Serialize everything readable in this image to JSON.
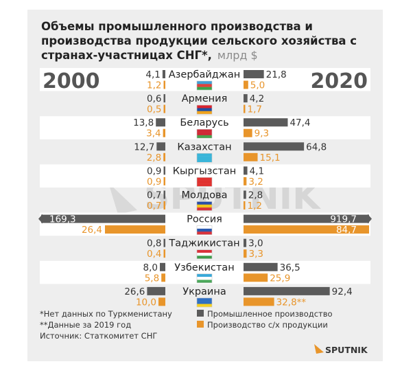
{
  "chart_data": {
    "type": "bar",
    "title_lines": [
      "Объемы промышленного производства и",
      "производства продукции сельского хозяйства с",
      "странах-участницах СНГ*,"
    ],
    "unit": "млрд $",
    "left_year": "2000",
    "right_year": "2020",
    "categories": [
      "Азербайджан",
      "Армения",
      "Беларусь",
      "Казахстан",
      "Кыргызстан",
      "Молдова",
      "Россия",
      "Таджикистан",
      "Узбекистан",
      "Украина"
    ],
    "series": [
      {
        "name": "Промышленное производство",
        "year": "2000",
        "values": [
          4.1,
          0.6,
          13.8,
          12.7,
          0.9,
          0.7,
          169.3,
          0.8,
          8.0,
          26.6
        ],
        "labels": [
          "4,1",
          "0,6",
          "13,8",
          "12,7",
          "0,9",
          "0,7",
          "169,3",
          "0,8",
          "8,0",
          "26,6"
        ]
      },
      {
        "name": "Производство с/х продукции",
        "year": "2000",
        "values": [
          1.2,
          0.5,
          3.4,
          2.8,
          0.9,
          0.7,
          26.4,
          0.4,
          5.8,
          10.0
        ],
        "labels": [
          "1,2",
          "0,5",
          "3,4",
          "2,8",
          "0,9",
          "0,7",
          "26,4",
          "0,4",
          "5,8",
          "10,0"
        ]
      },
      {
        "name": "Промышленное производство",
        "year": "2020",
        "values": [
          21.8,
          4.2,
          47.4,
          64.8,
          4.1,
          2.8,
          919.7,
          3.0,
          36.5,
          92.4
        ],
        "labels": [
          "21,8",
          "4,2",
          "47,4",
          "64,8",
          "4,1",
          "2,8",
          "919,7",
          "3,0",
          "36,5",
          "92,4"
        ]
      },
      {
        "name": "Производство с/х продукции",
        "year": "2020",
        "values": [
          5.0,
          1.7,
          9.3,
          15.1,
          3.2,
          1.2,
          84.7,
          3.3,
          25.9,
          32.8
        ],
        "labels": [
          "5,0",
          "1,7",
          "9,3",
          "15,1",
          "3,2",
          "1,2",
          "84,7",
          "3,3",
          "25,9",
          "32,8**"
        ]
      }
    ],
    "truncated_category": "Россия",
    "colors": {
      "industry": "#5b5b5b",
      "agriculture": "#e8952b",
      "band": "#ffffff",
      "card": "#eeeeee"
    },
    "flag_icons": [
      "azerbaijan-flag-icon",
      "armenia-flag-icon",
      "belarus-flag-icon",
      "kazakhstan-flag-icon",
      "kyrgyzstan-flag-icon",
      "moldova-flag-icon",
      "russia-flag-icon",
      "tajikistan-flag-icon",
      "uzbekistan-flag-icon",
      "ukraine-flag-icon"
    ]
  },
  "footnotes": [
    "*Нет данных по Туркменистану",
    "**Данные за 2019 год",
    "Источник: Статкомитет СНГ"
  ],
  "legend": [
    {
      "label": "Промышленное производство",
      "color": "#5b5b5b"
    },
    {
      "label": "Производство с/х продукции",
      "color": "#e8952b"
    }
  ],
  "watermark": "SPUTNIK",
  "logo": "SPUTNIK"
}
